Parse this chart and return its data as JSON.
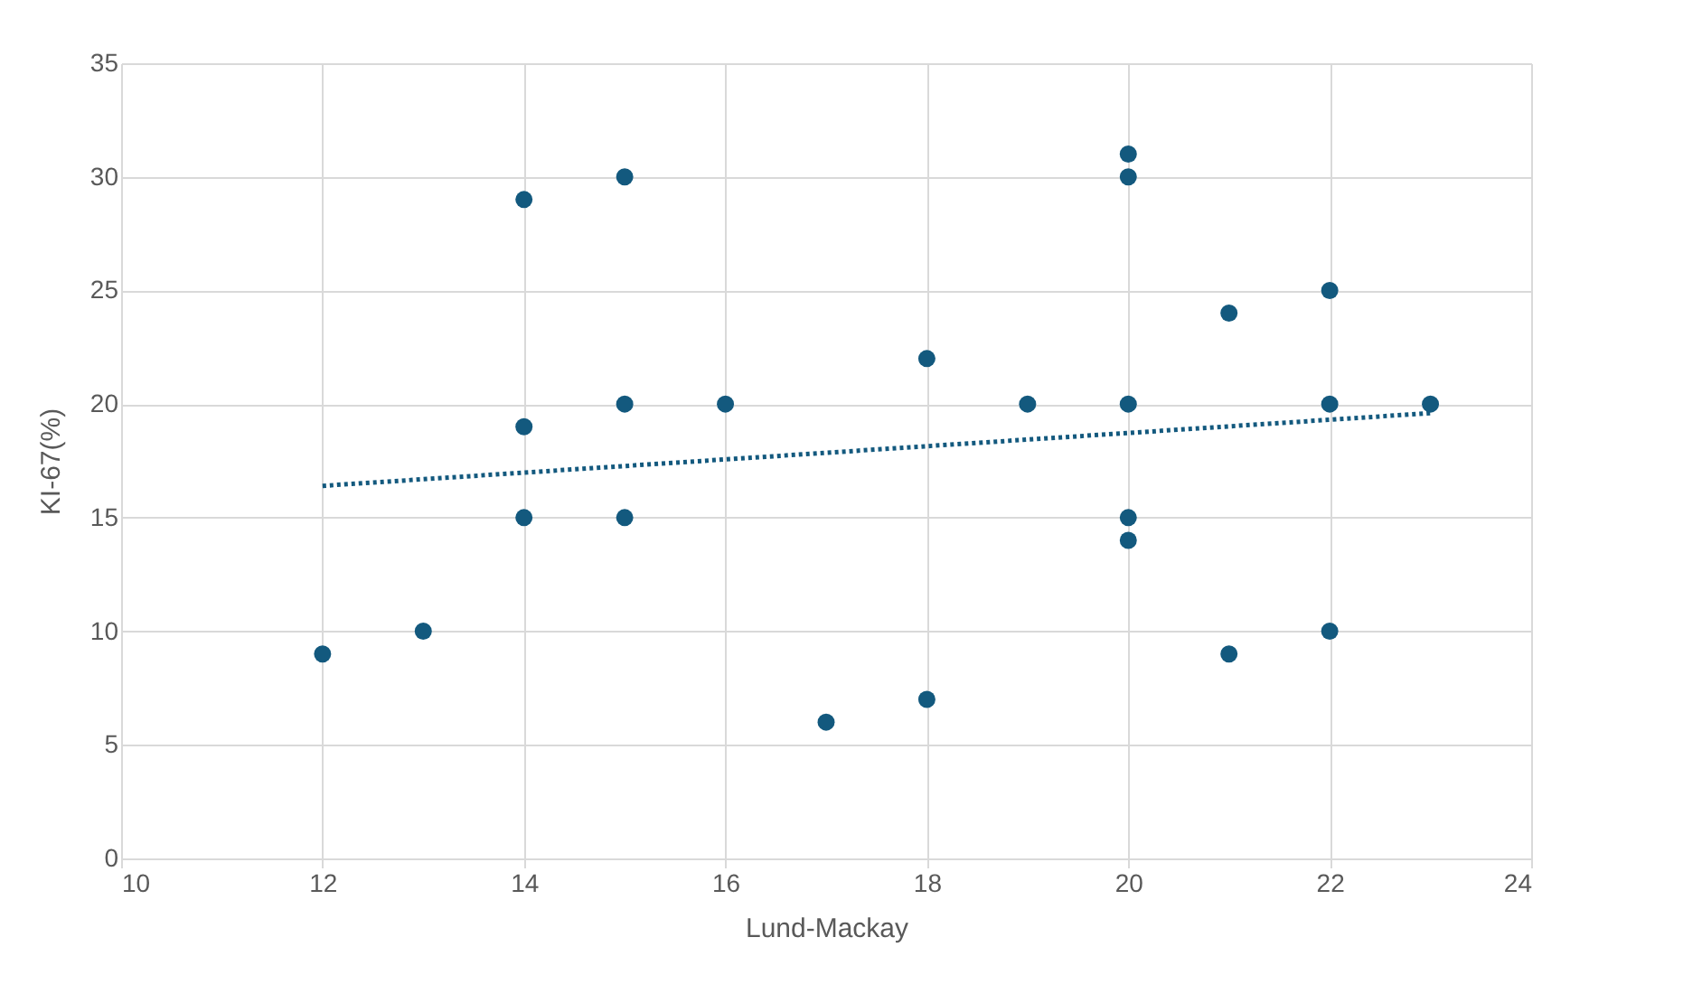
{
  "chart_data": {
    "type": "scatter",
    "xlabel": "Lund-Mackay",
    "ylabel": "KI-67(%)",
    "xlim": [
      10,
      24
    ],
    "xticks": [
      10,
      12,
      14,
      16,
      18,
      20,
      22,
      24
    ],
    "ylim": [
      0,
      35
    ],
    "yticks": [
      0,
      5,
      10,
      15,
      20,
      25,
      30,
      35
    ],
    "grid": true,
    "series": [
      {
        "color": "#13597e",
        "marker": "circle",
        "x": [
          12,
          13,
          14,
          14,
          14,
          15,
          15,
          15,
          16,
          17,
          18,
          18,
          19,
          20,
          20,
          20,
          20,
          20,
          21,
          21,
          22,
          22,
          22,
          23
        ],
        "values": [
          9,
          10,
          29,
          19,
          15,
          30,
          20,
          15,
          20,
          6,
          22,
          7,
          20,
          31,
          30,
          20,
          15,
          14,
          24,
          9,
          25,
          20,
          10,
          20
        ]
      },
      {
        "type": "line",
        "color": "#13597e",
        "line_style": "dotted",
        "x": [
          12,
          23
        ],
        "values": [
          16.4,
          19.6
        ]
      }
    ]
  }
}
